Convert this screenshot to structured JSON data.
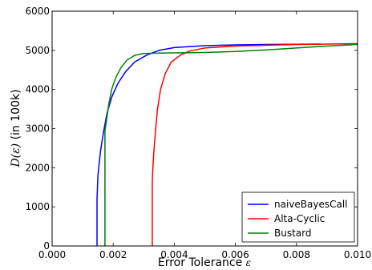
{
  "chart_data": {
    "type": "line",
    "xlabel": "Error Tolerance",
    "xlabel_symbol": "ε",
    "ylabel_symbol": "D(ε)",
    "ylabel": " (in 100k)",
    "xlim": [
      0.0,
      0.01
    ],
    "ylim": [
      0,
      6000
    ],
    "x_ticks": [
      0.0,
      0.002,
      0.004,
      0.006,
      0.008,
      0.01
    ],
    "x_tick_labels": [
      "0.000",
      "0.002",
      "0.004",
      "0.006",
      "0.008",
      "0.010"
    ],
    "y_ticks": [
      0,
      1000,
      2000,
      3000,
      4000,
      5000,
      6000
    ],
    "y_tick_labels": [
      "0",
      "1000",
      "2000",
      "3000",
      "4000",
      "5000",
      "6000"
    ],
    "grid": false,
    "legend_position": "lower-right",
    "series": [
      {
        "name": "naiveBayesCall",
        "color": "#0000ff",
        "points": [
          [
            0.00147,
            0
          ],
          [
            0.00147,
            1200
          ],
          [
            0.0015,
            1800
          ],
          [
            0.00158,
            2400
          ],
          [
            0.00168,
            2900
          ],
          [
            0.0018,
            3400
          ],
          [
            0.00195,
            3800
          ],
          [
            0.00215,
            4150
          ],
          [
            0.0024,
            4450
          ],
          [
            0.0027,
            4700
          ],
          [
            0.0031,
            4880
          ],
          [
            0.0035,
            5000
          ],
          [
            0.004,
            5070
          ],
          [
            0.005,
            5120
          ],
          [
            0.006,
            5140
          ],
          [
            0.007,
            5150
          ],
          [
            0.008,
            5155
          ],
          [
            0.0088,
            5160
          ]
        ]
      },
      {
        "name": "Alta-Cyclic",
        "color": "#ff0000",
        "points": [
          [
            0.00328,
            0
          ],
          [
            0.00328,
            1700
          ],
          [
            0.00332,
            2300
          ],
          [
            0.00338,
            2900
          ],
          [
            0.00345,
            3500
          ],
          [
            0.00355,
            4000
          ],
          [
            0.0037,
            4400
          ],
          [
            0.0039,
            4700
          ],
          [
            0.0042,
            4880
          ],
          [
            0.0045,
            4980
          ],
          [
            0.005,
            5060
          ],
          [
            0.006,
            5110
          ],
          [
            0.007,
            5130
          ],
          [
            0.008,
            5150
          ],
          [
            0.009,
            5160
          ],
          [
            0.01,
            5170
          ]
        ]
      },
      {
        "name": "Bustard",
        "color": "#008000",
        "points": [
          [
            0.00173,
            0
          ],
          [
            0.00173,
            2950
          ],
          [
            0.00178,
            3200
          ],
          [
            0.00185,
            3600
          ],
          [
            0.00195,
            4000
          ],
          [
            0.00208,
            4300
          ],
          [
            0.00225,
            4550
          ],
          [
            0.00245,
            4750
          ],
          [
            0.0027,
            4870
          ],
          [
            0.003,
            4920
          ],
          [
            0.0035,
            4930
          ],
          [
            0.004,
            4935
          ],
          [
            0.005,
            4945
          ],
          [
            0.006,
            4970
          ],
          [
            0.007,
            5010
          ],
          [
            0.008,
            5060
          ],
          [
            0.009,
            5110
          ],
          [
            0.01,
            5150
          ]
        ]
      }
    ]
  }
}
